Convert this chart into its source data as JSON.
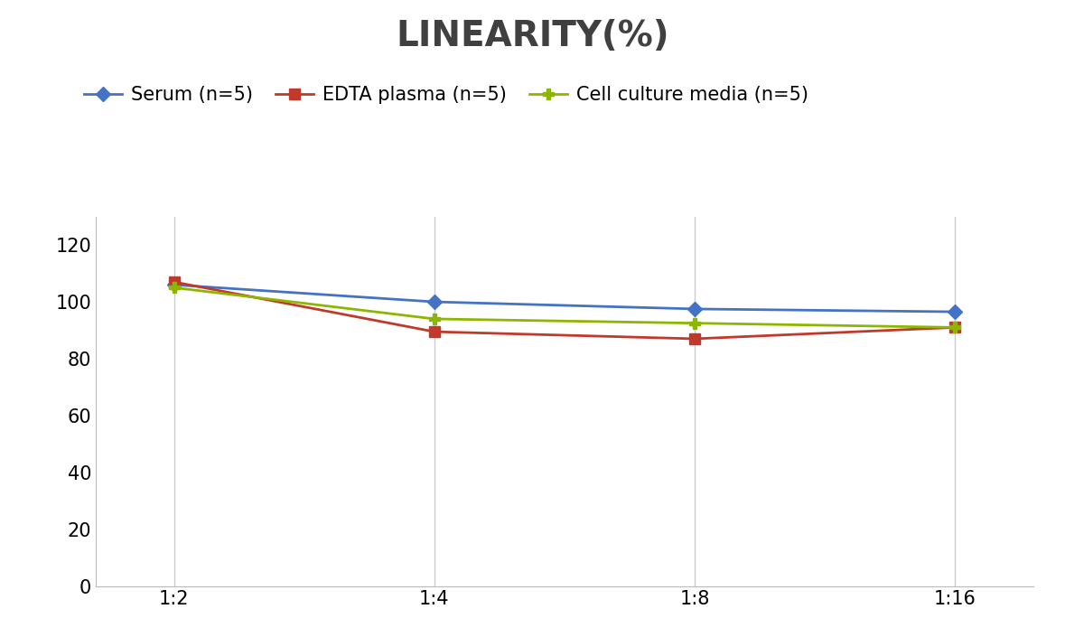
{
  "title": "LINEARITY(%)",
  "x_labels": [
    "1:2",
    "1:4",
    "1:8",
    "1:16"
  ],
  "x_positions": [
    0,
    1,
    2,
    3
  ],
  "series": [
    {
      "label": "Serum (n=5)",
      "values": [
        106,
        100,
        97.5,
        96.5
      ],
      "color": "#4472C4",
      "marker": "D",
      "markersize": 8,
      "linewidth": 2
    },
    {
      "label": "EDTA plasma (n=5)",
      "values": [
        107,
        89.5,
        87,
        91
      ],
      "color": "#C0392B",
      "marker": "s",
      "markersize": 8,
      "linewidth": 2
    },
    {
      "label": "Cell culture media (n=5)",
      "values": [
        105,
        94,
        92.5,
        91
      ],
      "color": "#8DB600",
      "marker": "P",
      "markersize": 9,
      "linewidth": 2
    }
  ],
  "ylim": [
    0,
    130
  ],
  "yticks": [
    0,
    20,
    40,
    60,
    80,
    100,
    120
  ],
  "title_fontsize": 28,
  "legend_fontsize": 15,
  "tick_fontsize": 15,
  "background_color": "#ffffff",
  "grid_color": "#cccccc",
  "title_color": "#404040"
}
